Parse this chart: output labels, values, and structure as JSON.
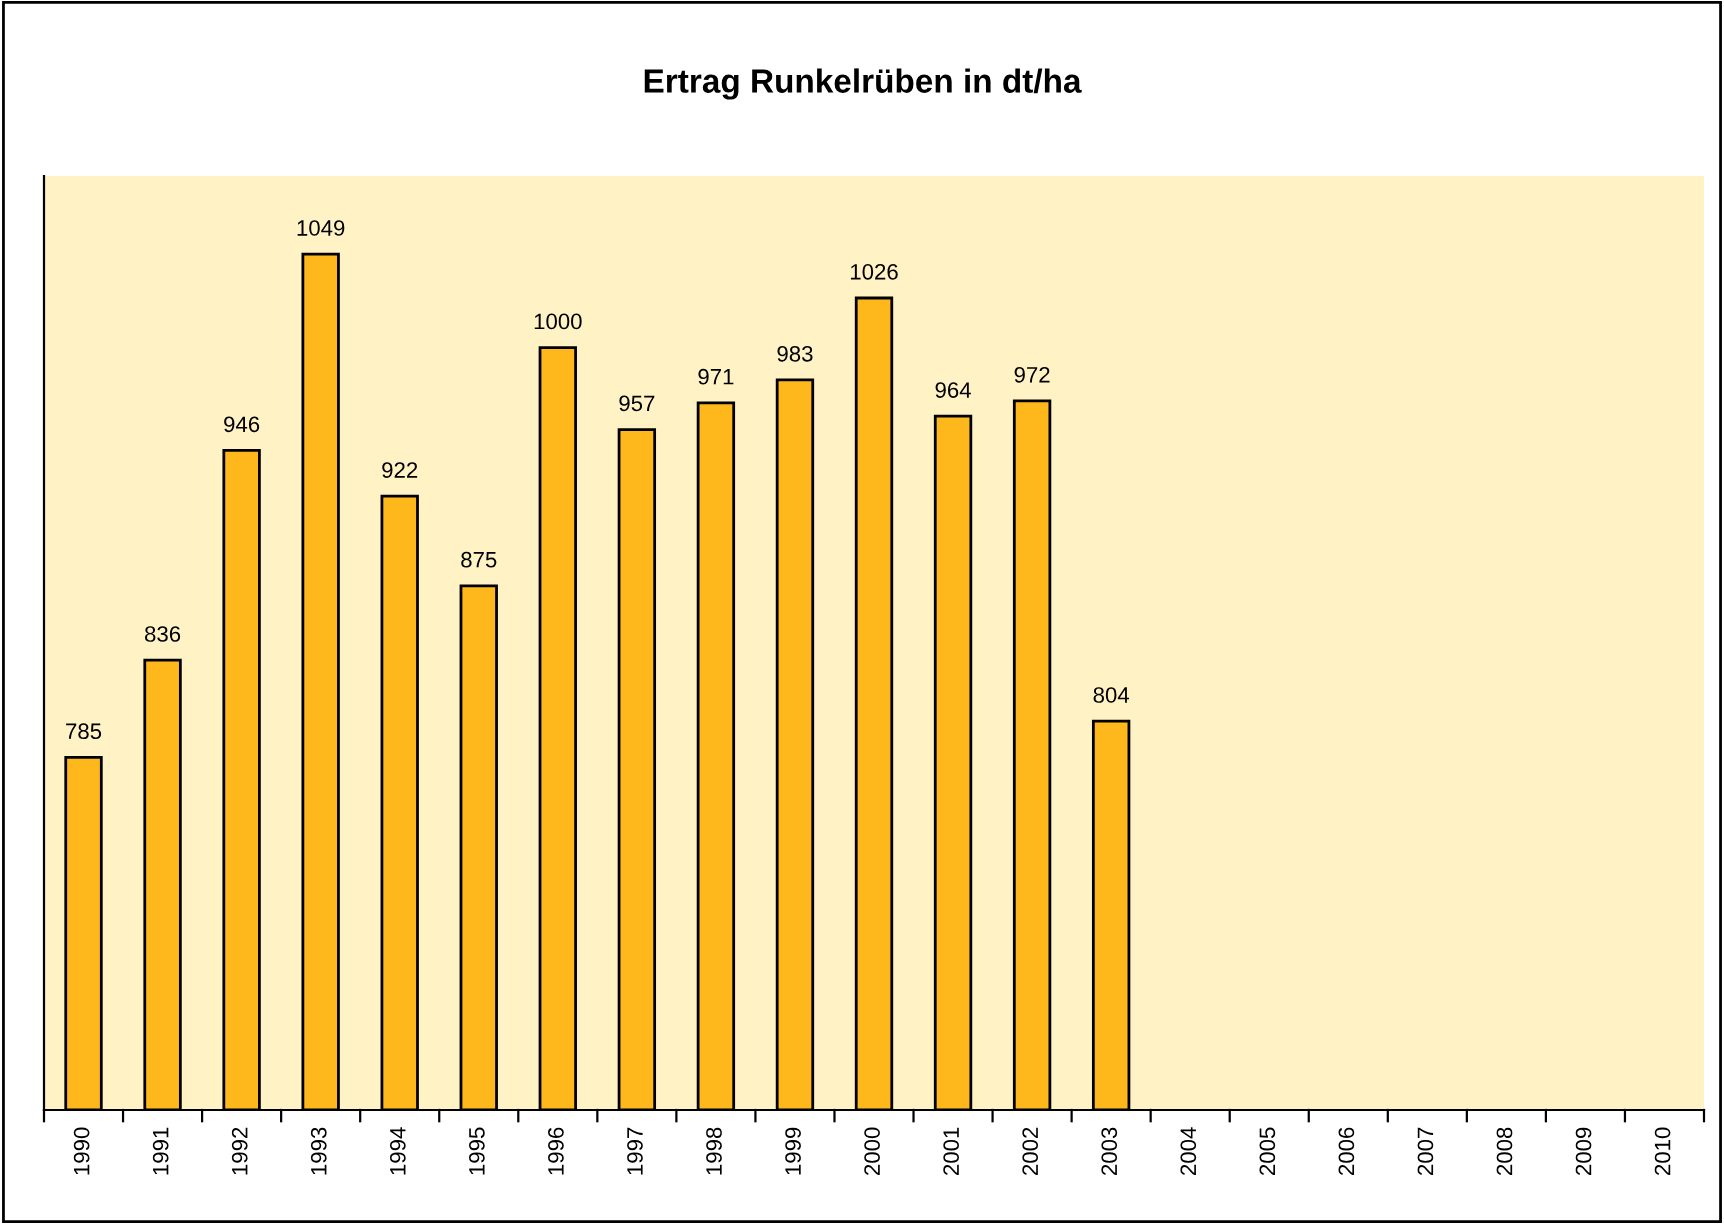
{
  "chart_data": {
    "type": "bar",
    "title": "Ertrag Runkelrüben in dt/ha",
    "categories": [
      "1990",
      "1991",
      "1992",
      "1993",
      "1994",
      "1995",
      "1996",
      "1997",
      "1998",
      "1999",
      "2000",
      "2001",
      "2002",
      "2003",
      "2004",
      "2005",
      "2006",
      "2007",
      "2008",
      "2009",
      "2010"
    ],
    "values": [
      785,
      836,
      946,
      1049,
      922,
      875,
      1000,
      957,
      971,
      983,
      1026,
      964,
      972,
      804,
      null,
      null,
      null,
      null,
      null,
      null,
      null
    ],
    "color": "#ffb81c",
    "ylim": [
      600,
      1090
    ],
    "data_labels": true,
    "tick_labels": "x",
    "grid": false,
    "legend": false
  }
}
